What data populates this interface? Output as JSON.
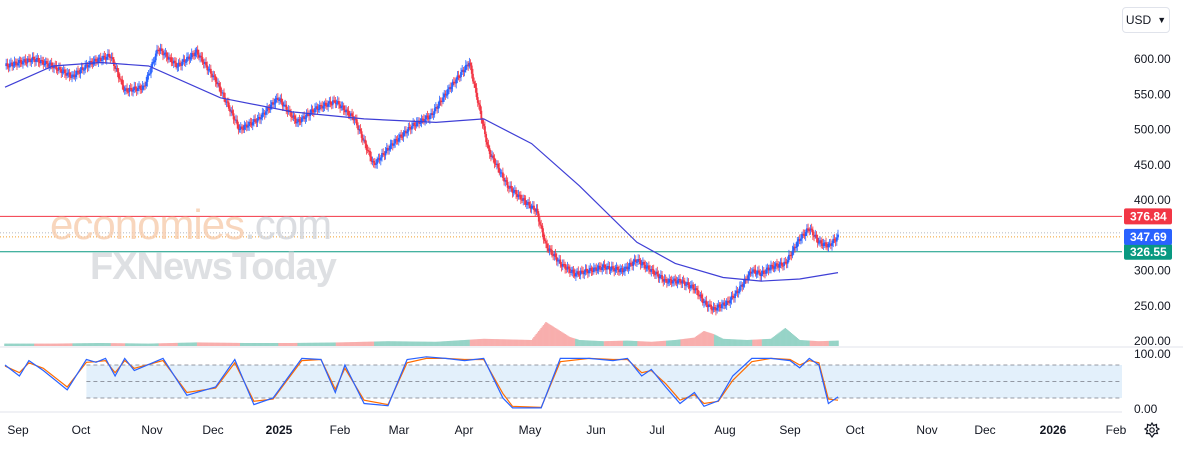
{
  "toolbar": {
    "currency": "USD"
  },
  "watermark": {
    "line1": "economies",
    "line1_suffix": ".com",
    "line2": "FXNewsToday"
  },
  "chart_data": {
    "type": "candlestick",
    "x_axis_labels": [
      "Sep",
      "Oct",
      "Nov",
      "Dec",
      "2025",
      "Feb",
      "Mar",
      "Apr",
      "May",
      "Jun",
      "Jul",
      "Aug",
      "Sep",
      "Oct",
      "Nov",
      "Dec",
      "2026",
      "Feb"
    ],
    "x_axis_bold": [
      "2025",
      "2026"
    ],
    "price_axis": {
      "ticks": [
        "600.00",
        "550.00",
        "500.00",
        "450.00",
        "400.00",
        "300.00",
        "250.00",
        "200.00"
      ],
      "ylim": [
        200,
        630
      ]
    },
    "oscillator_axis": {
      "ticks": [
        "100.00",
        "0.00"
      ],
      "ylim": [
        0,
        100
      ],
      "upper_band": 80,
      "lower_band": 20,
      "mid": 50
    },
    "horizontal_lines": [
      {
        "label": "376.84",
        "value": 376.84,
        "color": "#f23645"
      },
      {
        "label": "326.55",
        "value": 326.55,
        "color": "#089981"
      }
    ],
    "last_price": {
      "label": "347.69",
      "value": 347.69,
      "color": "#2962ff"
    },
    "colors": {
      "up": "#2962ff",
      "down": "#f23645",
      "ma": "#3f3fd6",
      "k_line": "#2962ff",
      "d_line": "#ff6d00",
      "band_fill": "#e3f0fb"
    },
    "price_path": [
      [
        0,
        590
      ],
      [
        6,
        600
      ],
      [
        10,
        590
      ],
      [
        14,
        575
      ],
      [
        18,
        595
      ],
      [
        22,
        605
      ],
      [
        25,
        555
      ],
      [
        29,
        560
      ],
      [
        32,
        615
      ],
      [
        36,
        590
      ],
      [
        40,
        610
      ],
      [
        44,
        570
      ],
      [
        49,
        500
      ],
      [
        53,
        515
      ],
      [
        57,
        545
      ],
      [
        61,
        510
      ],
      [
        65,
        530
      ],
      [
        69,
        540
      ],
      [
        73,
        515
      ],
      [
        77,
        450
      ],
      [
        81,
        480
      ],
      [
        85,
        505
      ],
      [
        89,
        520
      ],
      [
        93,
        560
      ],
      [
        97,
        595
      ],
      [
        101,
        470
      ],
      [
        105,
        420
      ],
      [
        109,
        395
      ],
      [
        111,
        385
      ],
      [
        113,
        335
      ],
      [
        116,
        310
      ],
      [
        119,
        295
      ],
      [
        122,
        300
      ],
      [
        125,
        305
      ],
      [
        129,
        300
      ],
      [
        132,
        315
      ],
      [
        135,
        300
      ],
      [
        138,
        285
      ],
      [
        141,
        285
      ],
      [
        144,
        275
      ],
      [
        146,
        255
      ],
      [
        148,
        245
      ],
      [
        151,
        255
      ],
      [
        153,
        270
      ],
      [
        156,
        300
      ],
      [
        158,
        295
      ],
      [
        160,
        305
      ],
      [
        163,
        310
      ],
      [
        166,
        345
      ],
      [
        168,
        360
      ],
      [
        170,
        340
      ],
      [
        172,
        335
      ],
      [
        174,
        347.69
      ]
    ],
    "moving_average": [
      [
        0,
        560
      ],
      [
        10,
        590
      ],
      [
        20,
        595
      ],
      [
        30,
        590
      ],
      [
        45,
        545
      ],
      [
        60,
        525
      ],
      [
        75,
        515
      ],
      [
        90,
        510
      ],
      [
        100,
        515
      ],
      [
        110,
        480
      ],
      [
        120,
        420
      ],
      [
        132,
        340
      ],
      [
        140,
        310
      ],
      [
        150,
        290
      ],
      [
        158,
        285
      ],
      [
        166,
        288
      ],
      [
        174,
        297
      ]
    ],
    "stoch_k": [
      [
        0,
        80
      ],
      [
        3,
        60
      ],
      [
        5,
        88
      ],
      [
        8,
        70
      ],
      [
        13,
        35
      ],
      [
        17,
        90
      ],
      [
        19,
        85
      ],
      [
        21,
        92
      ],
      [
        23,
        60
      ],
      [
        25,
        92
      ],
      [
        27,
        70
      ],
      [
        33,
        92
      ],
      [
        38,
        25
      ],
      [
        44,
        40
      ],
      [
        48,
        90
      ],
      [
        52,
        8
      ],
      [
        56,
        20
      ],
      [
        62,
        92
      ],
      [
        66,
        90
      ],
      [
        69,
        30
      ],
      [
        71,
        80
      ],
      [
        75,
        10
      ],
      [
        80,
        6
      ],
      [
        84,
        90
      ],
      [
        88,
        95
      ],
      [
        92,
        92
      ],
      [
        96,
        88
      ],
      [
        100,
        92
      ],
      [
        104,
        20
      ],
      [
        106,
        2
      ],
      [
        112,
        2
      ],
      [
        116,
        92
      ],
      [
        122,
        92
      ],
      [
        127,
        88
      ],
      [
        130,
        92
      ],
      [
        133,
        60
      ],
      [
        135,
        72
      ],
      [
        138,
        40
      ],
      [
        141,
        10
      ],
      [
        144,
        30
      ],
      [
        146,
        5
      ],
      [
        149,
        15
      ],
      [
        152,
        60
      ],
      [
        156,
        92
      ],
      [
        160,
        92
      ],
      [
        164,
        88
      ],
      [
        166,
        75
      ],
      [
        168,
        92
      ],
      [
        170,
        80
      ],
      [
        172,
        10
      ],
      [
        174,
        22
      ]
    ],
    "stoch_d": [
      [
        0,
        78
      ],
      [
        3,
        66
      ],
      [
        5,
        84
      ],
      [
        8,
        74
      ],
      [
        13,
        40
      ],
      [
        17,
        85
      ],
      [
        19,
        86
      ],
      [
        21,
        88
      ],
      [
        23,
        66
      ],
      [
        25,
        88
      ],
      [
        27,
        74
      ],
      [
        33,
        88
      ],
      [
        38,
        30
      ],
      [
        44,
        38
      ],
      [
        48,
        84
      ],
      [
        52,
        14
      ],
      [
        56,
        18
      ],
      [
        62,
        88
      ],
      [
        66,
        90
      ],
      [
        69,
        36
      ],
      [
        71,
        74
      ],
      [
        75,
        16
      ],
      [
        80,
        8
      ],
      [
        84,
        84
      ],
      [
        88,
        92
      ],
      [
        92,
        92
      ],
      [
        96,
        90
      ],
      [
        100,
        90
      ],
      [
        104,
        28
      ],
      [
        106,
        5
      ],
      [
        112,
        3
      ],
      [
        116,
        86
      ],
      [
        122,
        92
      ],
      [
        127,
        90
      ],
      [
        130,
        90
      ],
      [
        133,
        66
      ],
      [
        135,
        70
      ],
      [
        138,
        46
      ],
      [
        141,
        16
      ],
      [
        144,
        26
      ],
      [
        146,
        10
      ],
      [
        149,
        14
      ],
      [
        152,
        52
      ],
      [
        156,
        86
      ],
      [
        160,
        92
      ],
      [
        164,
        90
      ],
      [
        166,
        80
      ],
      [
        168,
        88
      ],
      [
        170,
        84
      ],
      [
        172,
        18
      ],
      [
        174,
        16
      ]
    ],
    "volume": [
      [
        0,
        4
      ],
      [
        10,
        4
      ],
      [
        20,
        5
      ],
      [
        30,
        4
      ],
      [
        40,
        6
      ],
      [
        50,
        5
      ],
      [
        60,
        5
      ],
      [
        70,
        6
      ],
      [
        80,
        8
      ],
      [
        90,
        7
      ],
      [
        100,
        12
      ],
      [
        110,
        10
      ],
      [
        113,
        40
      ],
      [
        114,
        35
      ],
      [
        115,
        30
      ],
      [
        116,
        25
      ],
      [
        118,
        15
      ],
      [
        120,
        10
      ],
      [
        125,
        8
      ],
      [
        130,
        9
      ],
      [
        135,
        7
      ],
      [
        140,
        10
      ],
      [
        144,
        14
      ],
      [
        146,
        25
      ],
      [
        148,
        20
      ],
      [
        150,
        12
      ],
      [
        155,
        10
      ],
      [
        160,
        12
      ],
      [
        163,
        30
      ],
      [
        166,
        10
      ],
      [
        170,
        8
      ],
      [
        174,
        9
      ]
    ]
  }
}
